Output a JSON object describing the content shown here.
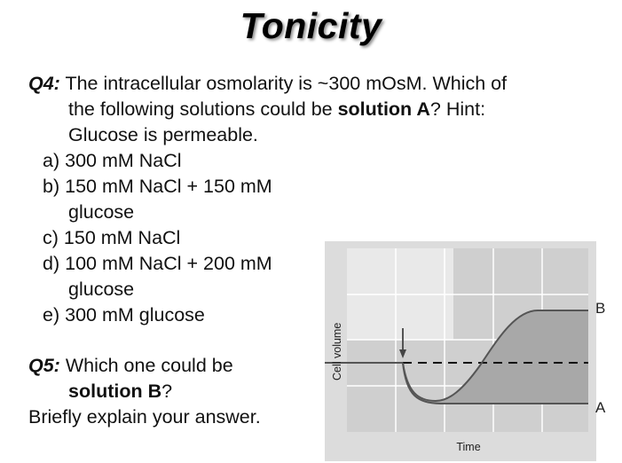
{
  "title": "Tonicity",
  "q4": {
    "label": "Q4:",
    "line1": "The intracellular osmolarity is ~300 mOsM. Which of",
    "line2_pre": "the following solutions could be ",
    "line2_bold": "solution A",
    "line2_post": "? Hint:",
    "line3": "Glucose is permeable."
  },
  "options": [
    {
      "letter": "a)",
      "text": "300 mM NaCl"
    },
    {
      "letter": "b)",
      "text": "150 mM NaCl + 150 mM",
      "cont": "glucose"
    },
    {
      "letter": "c)",
      "text": "150 mM NaCl"
    },
    {
      "letter": "d)",
      "text": "100 mM NaCl + 200 mM",
      "cont": "glucose"
    },
    {
      "letter": "e)",
      "text": "300 mM glucose"
    }
  ],
  "q5": {
    "label": "Q5:",
    "line1": "Which one could be",
    "line2_bold": "solution B",
    "line2_post": "?",
    "line3": "Briefly explain your answer."
  },
  "graph": {
    "ylabel": "Cell volume",
    "xlabel": "Time",
    "label_b": "B",
    "label_a": "A"
  }
}
